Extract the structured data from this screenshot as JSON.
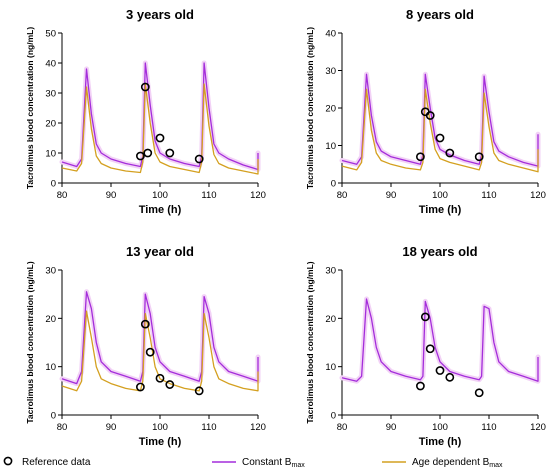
{
  "chart_data": [
    {
      "type": "line",
      "title": "3 years old",
      "xlabel": "Time (h)",
      "ylabel": "Tacrolimus blood concentration (ng/mL)",
      "xlim": [
        80,
        120
      ],
      "ylim": [
        0,
        50
      ],
      "xticks": [
        "80",
        "90",
        "100",
        "110",
        "120"
      ],
      "yticks": [
        "0",
        "10",
        "20",
        "30",
        "40",
        "50"
      ],
      "series": [
        {
          "name": "Constant Bmax",
          "x": [
            80,
            83,
            84,
            85,
            86,
            87,
            88,
            90,
            93,
            96,
            96.5,
            97,
            98,
            99,
            100,
            102,
            105,
            108,
            108.5,
            109,
            110,
            111,
            112,
            114,
            117,
            120,
            120.5
          ],
          "y": [
            7,
            5.5,
            8,
            38,
            23,
            13,
            10,
            8,
            6.5,
            5.5,
            9,
            40,
            26,
            14,
            10,
            8,
            6.5,
            5.5,
            9,
            40,
            25,
            13,
            10,
            8,
            6,
            4.5,
            10
          ]
        },
        {
          "name": "Age dependent Bmax",
          "x": [
            80,
            83,
            84,
            85,
            86,
            87,
            88,
            90,
            93,
            96,
            96.5,
            97,
            98,
            99,
            100,
            102,
            105,
            108,
            108.5,
            109,
            110,
            111,
            112,
            114,
            117,
            120,
            120.5
          ],
          "y": [
            5,
            4,
            6.5,
            32,
            18,
            9,
            6.5,
            5,
            4,
            3.5,
            7,
            33,
            20,
            10,
            7,
            5.5,
            4.5,
            3.5,
            7,
            33,
            19,
            9.5,
            6.5,
            5,
            4,
            3,
            8
          ]
        },
        {
          "name": "Reference data",
          "x": [
            96,
            97,
            97.5,
            100,
            102,
            108
          ],
          "y": [
            9,
            32,
            10,
            15,
            10,
            8
          ]
        }
      ]
    },
    {
      "type": "line",
      "title": "8 years old",
      "xlabel": "Time (h)",
      "ylabel": "Tacrolimus blood concentration (ng/mL)",
      "xlim": [
        80,
        120
      ],
      "ylim": [
        0,
        40
      ],
      "xticks": [
        "80",
        "90",
        "100",
        "110",
        "120"
      ],
      "yticks": [
        "0",
        "10",
        "20",
        "30",
        "40"
      ],
      "series": [
        {
          "name": "Constant Bmax",
          "x": [
            80,
            83,
            84,
            85,
            86,
            87,
            88,
            90,
            93,
            96,
            96.5,
            97,
            98,
            99,
            100,
            102,
            105,
            108,
            108.5,
            109,
            110,
            111,
            112,
            114,
            117,
            120,
            120.5
          ],
          "y": [
            6,
            5,
            7,
            29,
            18,
            11,
            8.5,
            7,
            6,
            5,
            7.5,
            29,
            20,
            12,
            9,
            7.5,
            6,
            5,
            7.5,
            28.5,
            19,
            11,
            8.5,
            7,
            5.5,
            4.5,
            13
          ]
        },
        {
          "name": "Age dependent Bmax",
          "x": [
            80,
            83,
            84,
            85,
            86,
            87,
            88,
            90,
            93,
            96,
            96.5,
            97,
            98,
            99,
            100,
            102,
            105,
            108,
            108.5,
            109,
            110,
            111,
            112,
            114,
            117,
            120,
            120.5
          ],
          "y": [
            4.5,
            3.5,
            5.5,
            25,
            14,
            8,
            6,
            5,
            4,
            3.5,
            5.5,
            25,
            16,
            9,
            6.5,
            5.5,
            4.5,
            3.5,
            5.5,
            24,
            15,
            8,
            6,
            5,
            4,
            3,
            9
          ]
        },
        {
          "name": "Reference data",
          "x": [
            96,
            97,
            98,
            100,
            102,
            108
          ],
          "y": [
            7,
            19,
            18,
            12,
            8,
            7
          ]
        }
      ]
    },
    {
      "type": "line",
      "title": "13 year old",
      "xlabel": "Time (h)",
      "ylabel": "Tacrolimus blood concentration (ng/mL)",
      "xlim": [
        80,
        120
      ],
      "ylim": [
        0,
        30
      ],
      "xticks": [
        "80",
        "90",
        "100",
        "110",
        "120"
      ],
      "yticks": [
        "0",
        "10",
        "20",
        "30"
      ],
      "series": [
        {
          "name": "Constant Bmax",
          "x": [
            80,
            83,
            84,
            85,
            86,
            87,
            88,
            90,
            93,
            96,
            96.5,
            97,
            98,
            99,
            100,
            102,
            105,
            108,
            108.5,
            109,
            110,
            111,
            112,
            114,
            117,
            120,
            120.5
          ],
          "y": [
            7.5,
            6.5,
            9,
            25.5,
            22,
            15,
            11,
            9,
            8,
            7,
            9,
            25,
            21,
            14,
            11,
            9,
            8,
            7,
            9,
            24.5,
            21,
            14,
            11,
            9,
            8,
            7,
            12
          ]
        },
        {
          "name": "Age dependent Bmax",
          "x": [
            80,
            83,
            84,
            85,
            86,
            87,
            88,
            90,
            93,
            96,
            96.5,
            97,
            98,
            99,
            100,
            102,
            105,
            108,
            108.5,
            109,
            110,
            111,
            112,
            114,
            117,
            120,
            120.5
          ],
          "y": [
            6,
            5,
            7,
            21.5,
            16,
            10,
            7.5,
            6.5,
            5.5,
            5,
            7,
            21,
            16,
            10,
            7.5,
            6.5,
            5.5,
            5,
            7,
            21,
            16,
            10,
            7.5,
            6.5,
            5.5,
            5,
            9
          ]
        },
        {
          "name": "Reference data",
          "x": [
            96,
            97,
            98,
            100,
            102,
            108
          ],
          "y": [
            5.8,
            18.8,
            13,
            7.6,
            6.3,
            5
          ]
        }
      ]
    },
    {
      "type": "line",
      "title": "18 years old",
      "xlabel": "Time (h)",
      "ylabel": "Tacrolimus blood concentration (ng/mL)",
      "xlim": [
        80,
        120
      ],
      "ylim": [
        0,
        30
      ],
      "xticks": [
        "80",
        "90",
        "100",
        "110",
        "120"
      ],
      "yticks": [
        "0",
        "10",
        "20",
        "30"
      ],
      "series": [
        {
          "name": "Constant Bmax",
          "x": [
            80,
            83,
            84,
            85,
            86,
            87,
            88,
            90,
            93,
            96,
            96.5,
            97,
            98,
            99,
            100,
            102,
            105,
            108,
            108.5,
            109,
            110,
            111,
            112,
            114,
            117,
            120,
            120.5
          ],
          "y": [
            7.7,
            7,
            8,
            24,
            20,
            14,
            11,
            9,
            8,
            7.3,
            8,
            23.5,
            20,
            14,
            11,
            9,
            8,
            7.3,
            8,
            22.5,
            22,
            15,
            11,
            9,
            8,
            7,
            12
          ]
        },
        {
          "name": "Reference data",
          "x": [
            96,
            97,
            98,
            100,
            102,
            108
          ],
          "y": [
            6,
            20.3,
            13.7,
            9.2,
            7.8,
            4.6
          ]
        }
      ]
    }
  ],
  "legend": {
    "reference": "Reference data",
    "constant_main": "Constant B",
    "constant_sub": "max",
    "age_main": "Age dependent B",
    "age_sub": "max"
  },
  "colors": {
    "constant": "#a42ddb",
    "age": "#d4a020",
    "band": "#f2d2f6",
    "reference": "#000000"
  }
}
